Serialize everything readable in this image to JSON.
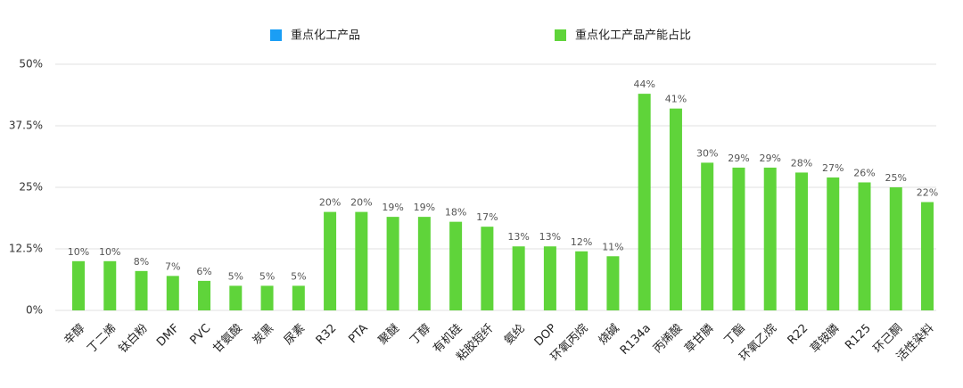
{
  "chart_data": {
    "type": "bar",
    "categories": [
      "辛醇",
      "丁二烯",
      "钛白粉",
      "DMF",
      "PVC",
      "甘氨酸",
      "炭黑",
      "尿素",
      "R32",
      "PTA",
      "聚醚",
      "丁醇",
      "有机硅",
      "粘胶短纤",
      "氨纶",
      "DOP",
      "环氧丙烷",
      "烧碱",
      "R134a",
      "丙烯酸",
      "草甘膦",
      "丁酯",
      "环氧乙烷",
      "R22",
      "草铵膦",
      "R125",
      "环己酮",
      "活性染料"
    ],
    "series": [
      {
        "name": "重点化工产品",
        "color": "#1a9ef5",
        "values": [
          null,
          null,
          null,
          null,
          null,
          null,
          null,
          null,
          null,
          null,
          null,
          null,
          null,
          null,
          null,
          null,
          null,
          null,
          null,
          null,
          null,
          null,
          null,
          null,
          null,
          null,
          null,
          null
        ]
      },
      {
        "name": "重点化工产品产能占比",
        "color": "#5fd43a",
        "values": [
          10,
          10,
          8,
          7,
          6,
          5,
          5,
          5,
          20,
          20,
          19,
          19,
          18,
          17,
          13,
          13,
          12,
          11,
          44,
          41,
          30,
          29,
          29,
          28,
          27,
          26,
          25,
          22
        ],
        "value_labels": [
          "10%",
          "10%",
          "8%",
          "7%",
          "6%",
          "5%",
          "5%",
          "5%",
          "20%",
          "20%",
          "19%",
          "19%",
          "18%",
          "17%",
          "13%",
          "13%",
          "12%",
          "11%",
          "44%",
          "41%",
          "30%",
          "29%",
          "29%",
          "28%",
          "27%",
          "26%",
          "25%",
          "22%"
        ]
      }
    ],
    "ylim": [
      0,
      50
    ],
    "yticks": [
      {
        "value": 0,
        "label": "0%"
      },
      {
        "value": 12.5,
        "label": "12.5%"
      },
      {
        "value": 25,
        "label": "25%"
      },
      {
        "value": 37.5,
        "label": "37.5%"
      },
      {
        "value": 50,
        "label": "50%"
      }
    ],
    "grid": true
  }
}
